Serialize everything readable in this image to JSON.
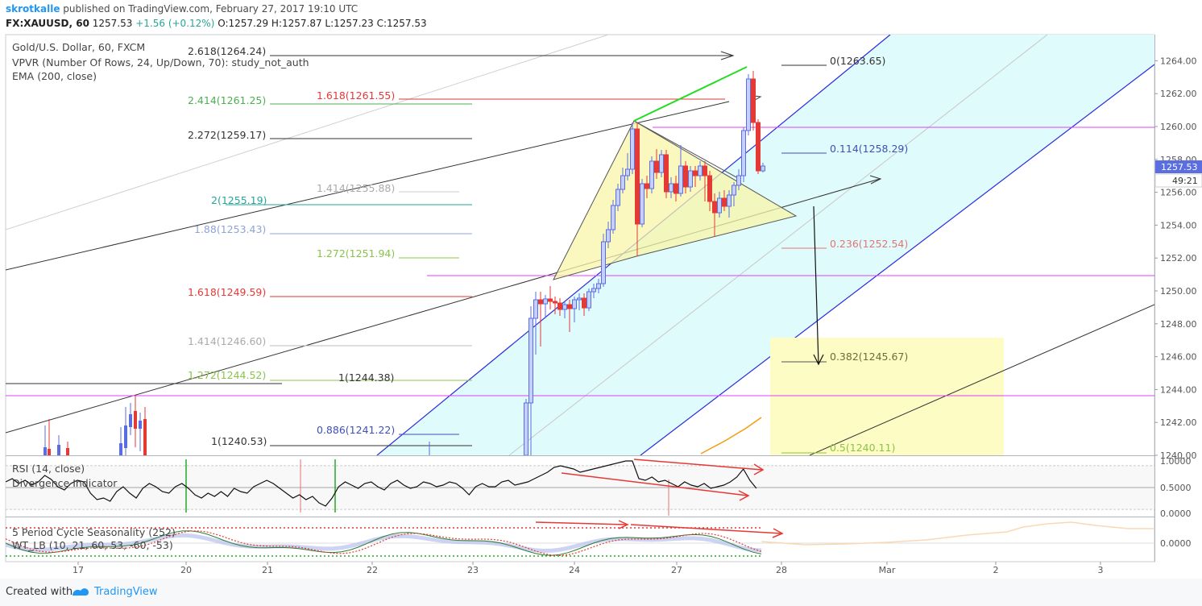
{
  "header": {
    "author": "skrotkalle",
    "published_text": "published on TradingView.com, February 27, 2017 19:10 UTC",
    "symbol": "FX:XAUUSD, 60",
    "last": "1257.53",
    "change": "+1.56 (+0.12%)",
    "ohlc": "O:1257.29 H:1257.87 L:1257.23 C:1257.53"
  },
  "legend": {
    "title": "Gold/U.S. Dollar, 60, FXCM",
    "vpvr": "VPVR (Number Of Rows, 24, Up/Down, 70): study_not_auth",
    "ema": "EMA (200, close)"
  },
  "price_axis": {
    "labels": [
      "1264.00",
      "1262.00",
      "1260.00",
      "1258.00",
      "1256.00",
      "1254.00",
      "1252.00",
      "1250.00",
      "1248.00",
      "1246.00",
      "1244.00",
      "1242.00",
      "1240.00"
    ],
    "current_price": "1257.53",
    "countdown": "49:21"
  },
  "time_axis": {
    "labels": [
      "17",
      "20",
      "21",
      "22",
      "23",
      "24",
      "27",
      "28",
      "Mar",
      "2",
      "3"
    ]
  },
  "fib_left": [
    {
      "label": "2.618(1264.24)",
      "color": "#333333"
    },
    {
      "label": "2.414(1261.25)",
      "color": "#4caf50"
    },
    {
      "label": "1.618(1261.55)",
      "color": "#e53935"
    },
    {
      "label": "2.272(1259.17)",
      "color": "#333333"
    },
    {
      "label": "1.414(1255.88)",
      "color": "#aaaaaa"
    },
    {
      "label": "2(1255.19)",
      "color": "#26a69a"
    },
    {
      "label": "1.88(1253.43)",
      "color": "#90a4d4"
    },
    {
      "label": "1.272(1251.94)",
      "color": "#8bc34a"
    },
    {
      "label": "1.618(1249.59)",
      "color": "#e53935"
    },
    {
      "label": "1.414(1246.60)",
      "color": "#aaaaaa"
    },
    {
      "label": "1.272(1244.52)",
      "color": "#8bc34a"
    },
    {
      "label": "1(1244.38)",
      "color": "#333333"
    },
    {
      "label": "0.886(1241.22)",
      "color": "#3f51b5"
    },
    {
      "label": "1(1240.53)",
      "color": "#333333"
    }
  ],
  "fib_right": [
    {
      "label": "0(1263.65)",
      "color": "#333333"
    },
    {
      "label": "0.114(1258.29)",
      "color": "#3f51b5"
    },
    {
      "label": "0.236(1252.54)",
      "color": "#e57373"
    },
    {
      "label": "0.382(1245.67)",
      "color": "#6d6d3a"
    },
    {
      "label": "0.5(1240.11)",
      "color": "#8bc34a"
    }
  ],
  "rsi": {
    "label": "RSI (14, close)",
    "sub_label": "Divergence Indicator",
    "axis": [
      "1.0000",
      "0.5000",
      "0.0000"
    ]
  },
  "seasonality": {
    "label": "5 Period Cycle Seasonality (252)",
    "sub_label": "WT_LB (10, 21, 60, 53, -60, -53)",
    "axis": [
      "0.0000"
    ]
  },
  "chart_data": {
    "type": "line",
    "title": "Gold/U.S. Dollar, 60, FXCM",
    "ylabel": "",
    "xlabel": "",
    "ylim": [
      1240,
      1265
    ],
    "x": [
      "24",
      "24",
      "24",
      "24",
      "24",
      "27",
      "27",
      "27",
      "27",
      "27"
    ],
    "series": [
      {
        "values": [
          1250.0,
          1251.0,
          1255.5,
          1259.5,
          1257.0,
          1258.5,
          1256.0,
          1254.5,
          1258.5,
          1257.53
        ]
      }
    ],
    "grid": true
  },
  "colors": {
    "up_candle": "#5b6ee1",
    "down_candle": "#e53935",
    "channel_fill": "#e0fbfc",
    "channel_line": "#2a2ae0",
    "triangle_fill": "#f8f6a8",
    "target_box": "#fdfcc4",
    "magenta": "#e040fb",
    "green_arrow": "#22dd22",
    "ema": "#f39c12"
  },
  "footer": {
    "created": "Created with",
    "brand": "TradingView"
  }
}
